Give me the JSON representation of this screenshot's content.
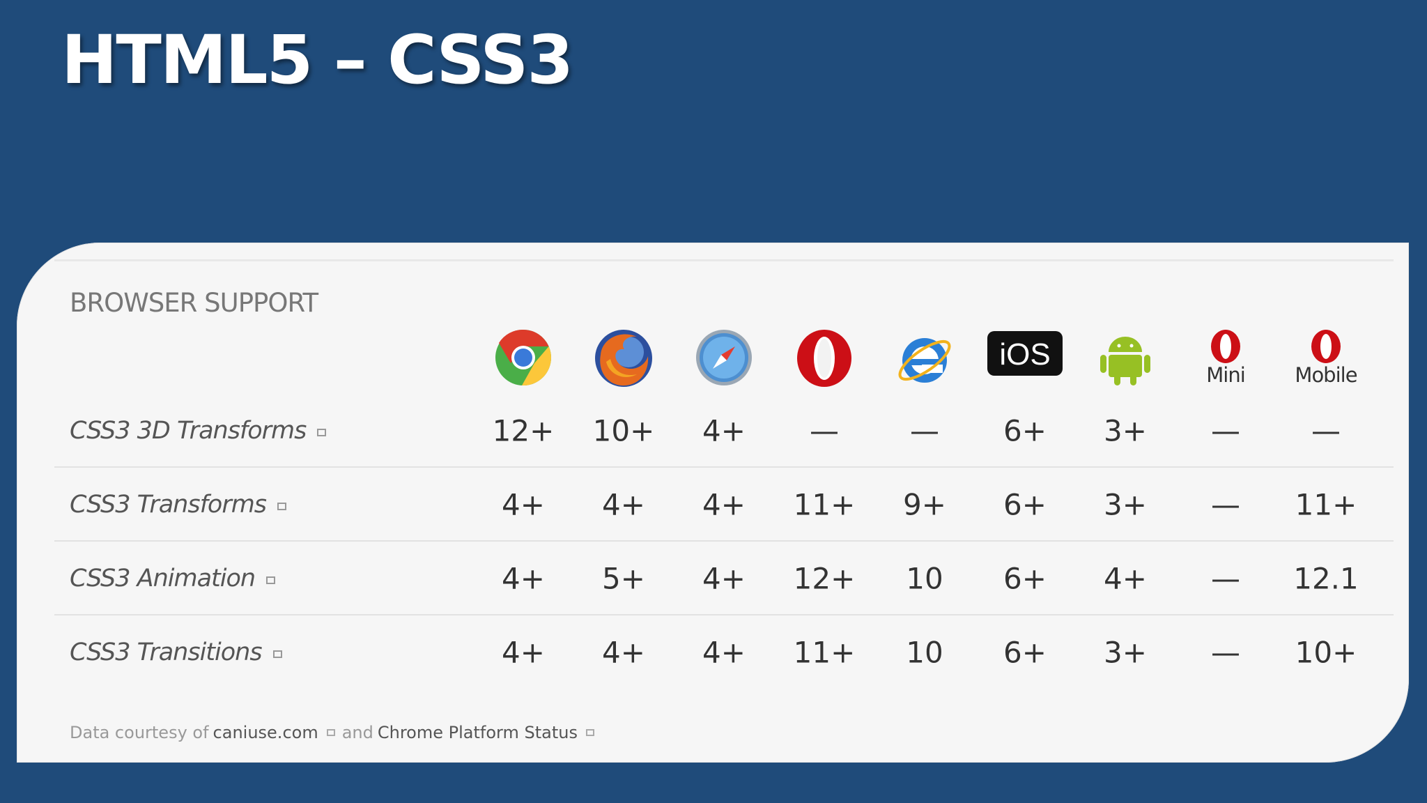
{
  "slide": {
    "title": "HTML5 – CSS3"
  },
  "table": {
    "heading": "BROWSER SUPPORT",
    "browsers": [
      {
        "icon": "chrome-icon",
        "label": ""
      },
      {
        "icon": "firefox-icon",
        "label": ""
      },
      {
        "icon": "safari-icon",
        "label": ""
      },
      {
        "icon": "opera-icon",
        "label": ""
      },
      {
        "icon": "internet-explorer-icon",
        "label": ""
      },
      {
        "icon": "ios-icon",
        "label": ""
      },
      {
        "icon": "android-icon",
        "label": ""
      },
      {
        "icon": "opera-mini-icon",
        "label": "Mini"
      },
      {
        "icon": "opera-mobile-icon",
        "label": "Mobile"
      }
    ],
    "rows": [
      {
        "feature": "CSS3 3D Transforms",
        "values": [
          "12+",
          "10+",
          "4+",
          "—",
          "—",
          "6+",
          "3+",
          "—",
          "—"
        ]
      },
      {
        "feature": "CSS3 Transforms",
        "values": [
          "4+",
          "4+",
          "4+",
          "11+",
          "9+",
          "6+",
          "3+",
          "—",
          "11+"
        ]
      },
      {
        "feature": "CSS3 Animation",
        "values": [
          "4+",
          "5+",
          "4+",
          "12+",
          "10",
          "6+",
          "4+",
          "—",
          "12.1"
        ]
      },
      {
        "feature": "CSS3 Transitions",
        "values": [
          "4+",
          "4+",
          "4+",
          "11+",
          "10",
          "6+",
          "3+",
          "—",
          "10+"
        ]
      }
    ],
    "footnote": {
      "prefix": "Data courtesy of",
      "link1": "caniuse.com",
      "middle": "and",
      "link2": "Chrome Platform Status"
    },
    "ios_text": "iOS",
    "colors": {
      "background": "#1f4b7a",
      "card": "#f6f6f6",
      "opera_red": "#cc0f16",
      "android_green": "#97c024"
    }
  }
}
